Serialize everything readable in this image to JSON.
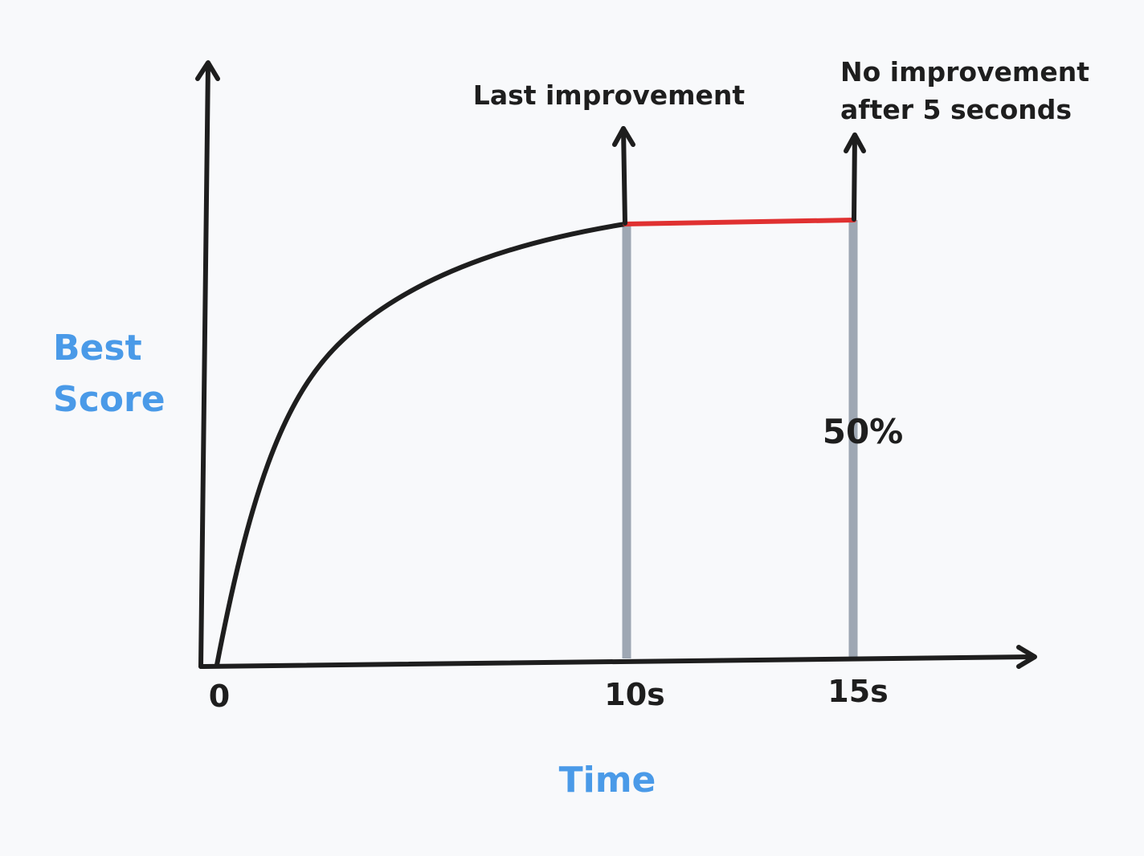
{
  "axes": {
    "y_label_line1": "Best",
    "y_label_line2": "Score",
    "x_label": "Time",
    "ticks": [
      "0",
      "10s",
      "15s"
    ]
  },
  "annotations": {
    "last_improvement": "Last improvement",
    "no_improvement_line1": "No improvement",
    "no_improvement_line2": "after 5 seconds",
    "percent": "50%"
  },
  "colors": {
    "stroke": "#1e1e1e",
    "guide": "#9ea7b3",
    "plateau": "#e03131",
    "label_blue": "#4a9ae8",
    "background": "#f8f9fb"
  }
}
